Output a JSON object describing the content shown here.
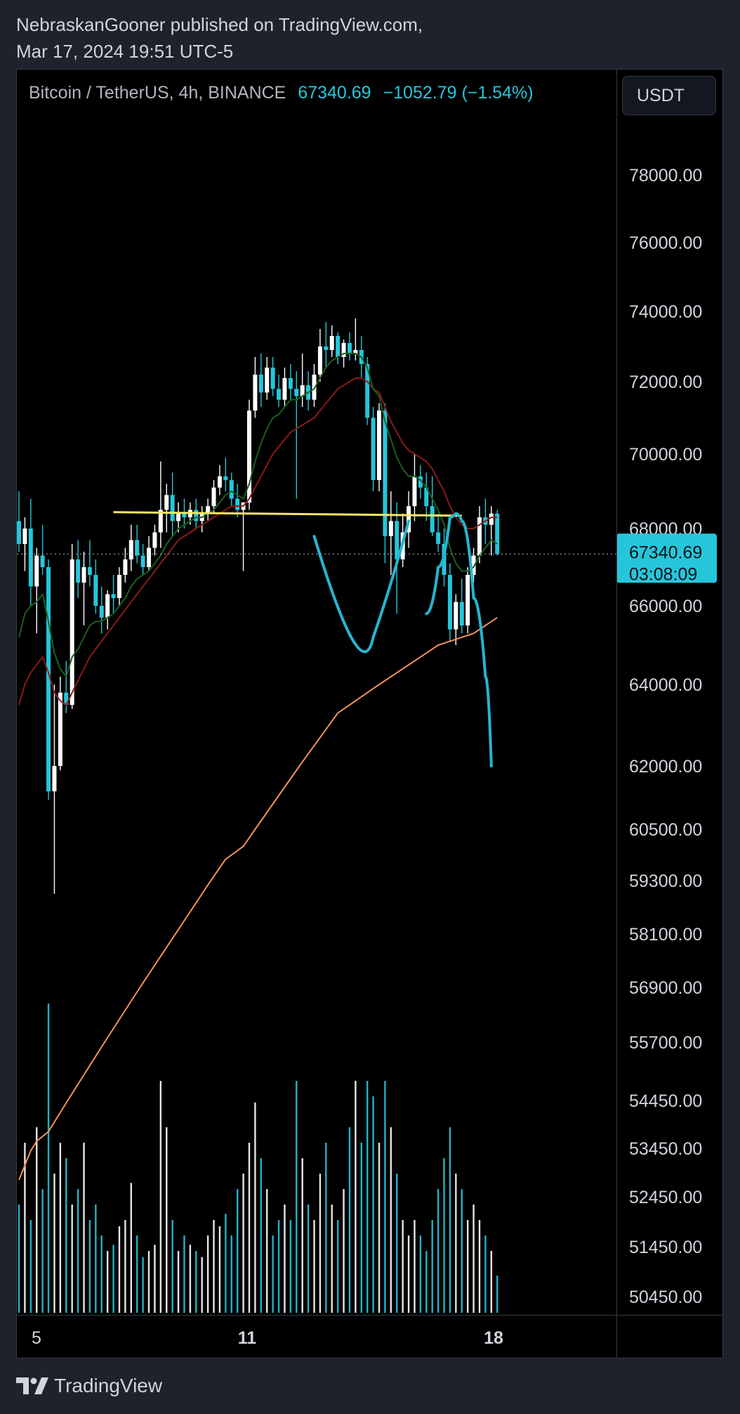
{
  "header": {
    "publisher_line": "NebraskanGooner published on TradingView.com,",
    "date_line": "Mar 17, 2024 19:51 UTC-5"
  },
  "symbol": {
    "name": "Bitcoin / TetherUS, 4h, BINANCE",
    "price": "67340.69",
    "change": "−1052.79 (−1.54%)"
  },
  "currency_button": "USDT",
  "price_badge": {
    "price": "67340.69",
    "countdown": "03:08:09"
  },
  "footer": {
    "brand": "TradingView"
  },
  "colors": {
    "up": "#ffffff",
    "down": "#26c6da",
    "ema_fast": "#1b5e20",
    "ema_mid": "#8b1a1a",
    "ema_slow": "#f4915a",
    "resistance": "#f5e663",
    "projection": "#26b5d0"
  },
  "chart_data": {
    "type": "candlestick",
    "timeframe": "4h",
    "x_tick_labels": [
      "5",
      "11",
      "18"
    ],
    "y_tick_labels": [
      "78000.00",
      "76000.00",
      "74000.00",
      "72000.00",
      "70000.00",
      "68000.00",
      "66000.00",
      "64000.00",
      "62000.00",
      "60500.00",
      "59300.00",
      "58100.00",
      "56900.00",
      "55700.00",
      "54450.00",
      "53450.00",
      "52450.00",
      "51450.00",
      "50450.00"
    ],
    "ylim": [
      50000,
      79000
    ],
    "last_price": 67340.69,
    "candles": [
      [
        68200,
        69000,
        67400,
        67600
      ],
      [
        67600,
        68300,
        66900,
        68000
      ],
      [
        68000,
        68800,
        66000,
        66500
      ],
      [
        66500,
        67500,
        65300,
        67300
      ],
      [
        67300,
        68100,
        66800,
        67000
      ],
      [
        67000,
        67200,
        61200,
        61400
      ],
      [
        61400,
        64000,
        59000,
        62000
      ],
      [
        62000,
        64200,
        61900,
        63800
      ],
      [
        63800,
        64600,
        63300,
        63500
      ],
      [
        63500,
        67600,
        63400,
        67200
      ],
      [
        67200,
        67700,
        66200,
        66600
      ],
      [
        66600,
        67400,
        65500,
        67000
      ],
      [
        67000,
        67700,
        66500,
        66800
      ],
      [
        66800,
        67200,
        65800,
        66000
      ],
      [
        66000,
        66500,
        65300,
        65700
      ],
      [
        65700,
        66400,
        65400,
        66300
      ],
      [
        66300,
        66800,
        65800,
        66200
      ],
      [
        66200,
        67000,
        66000,
        66800
      ],
      [
        66800,
        67500,
        66600,
        67200
      ],
      [
        67200,
        68100,
        66900,
        67700
      ],
      [
        67700,
        68100,
        67100,
        67300
      ],
      [
        67300,
        67600,
        66800,
        67000
      ],
      [
        67000,
        67800,
        66900,
        67500
      ],
      [
        67500,
        68100,
        67300,
        67900
      ],
      [
        67900,
        69800,
        67500,
        68500
      ],
      [
        68500,
        69200,
        67900,
        68900
      ],
      [
        68900,
        69500,
        67800,
        68200
      ],
      [
        68200,
        68700,
        67900,
        68400
      ],
      [
        68400,
        68800,
        68000,
        68300
      ],
      [
        68300,
        68700,
        68100,
        68500
      ],
      [
        68500,
        68800,
        68000,
        68200
      ],
      [
        68200,
        68600,
        67900,
        68400
      ],
      [
        68400,
        68800,
        68200,
        68600
      ],
      [
        68600,
        69300,
        68400,
        69100
      ],
      [
        69100,
        69700,
        68900,
        69400
      ],
      [
        69400,
        69900,
        69000,
        69300
      ],
      [
        69300,
        69500,
        68600,
        68800
      ],
      [
        68800,
        69200,
        68300,
        68500
      ],
      [
        68500,
        68700,
        66900,
        68700
      ],
      [
        68700,
        71500,
        68500,
        71200
      ],
      [
        71200,
        72700,
        71000,
        72200
      ],
      [
        72200,
        72800,
        71300,
        71700
      ],
      [
        71700,
        72700,
        71500,
        72400
      ],
      [
        72400,
        72700,
        71600,
        71800
      ],
      [
        71800,
        72200,
        71300,
        71500
      ],
      [
        71500,
        72400,
        71300,
        72100
      ],
      [
        72100,
        72500,
        71500,
        71800
      ],
      [
        71800,
        72300,
        68800,
        71600
      ],
      [
        71600,
        72800,
        71300,
        71900
      ],
      [
        71900,
        72300,
        71200,
        71500
      ],
      [
        71500,
        72500,
        71300,
        72200
      ],
      [
        72200,
        73500,
        72000,
        73000
      ],
      [
        73000,
        73700,
        72400,
        72900
      ],
      [
        72900,
        73600,
        72700,
        73300
      ],
      [
        73300,
        73400,
        72500,
        72700
      ],
      [
        72700,
        73200,
        72400,
        73100
      ],
      [
        73100,
        73400,
        72600,
        72800
      ],
      [
        72800,
        73800,
        72600,
        72900
      ],
      [
        72900,
        73300,
        72100,
        72500
      ],
      [
        72500,
        72700,
        70800,
        71000
      ],
      [
        71000,
        71300,
        69000,
        69300
      ],
      [
        69300,
        71400,
        69000,
        71200
      ],
      [
        71200,
        71400,
        67100,
        67800
      ],
      [
        67800,
        69000,
        66800,
        68200
      ],
      [
        68200,
        68700,
        65800,
        67200
      ],
      [
        67200,
        68400,
        67000,
        67900
      ],
      [
        67900,
        69000,
        67500,
        68600
      ],
      [
        68600,
        70000,
        68200,
        69400
      ],
      [
        69400,
        69700,
        68800,
        69100
      ],
      [
        69100,
        69500,
        68200,
        68600
      ],
      [
        68600,
        69400,
        67800,
        67900
      ],
      [
        67900,
        68400,
        67400,
        67600
      ],
      [
        67600,
        68000,
        66500,
        66800
      ],
      [
        66800,
        67100,
        65100,
        65400
      ],
      [
        65400,
        66300,
        65000,
        66100
      ],
      [
        66100,
        66700,
        65300,
        65500
      ],
      [
        65500,
        67000,
        65300,
        66800
      ],
      [
        66800,
        67500,
        66600,
        67300
      ],
      [
        67300,
        68600,
        67100,
        68300
      ],
      [
        68300,
        68800,
        67600,
        68100
      ],
      [
        68100,
        68600,
        67300,
        68400
      ],
      [
        68400,
        68500,
        67300,
        67341
      ]
    ],
    "volume": [
      0.35,
      0.55,
      0.3,
      0.6,
      0.4,
      1.0,
      0.45,
      0.55,
      0.5,
      0.35,
      0.4,
      0.55,
      0.3,
      0.35,
      0.25,
      0.2,
      0.22,
      0.28,
      0.3,
      0.42,
      0.25,
      0.18,
      0.2,
      0.22,
      0.75,
      0.6,
      0.3,
      0.2,
      0.25,
      0.22,
      0.2,
      0.18,
      0.25,
      0.3,
      0.28,
      0.32,
      0.25,
      0.4,
      0.45,
      0.55,
      0.68,
      0.5,
      0.4,
      0.25,
      0.3,
      0.35,
      0.3,
      0.75,
      0.5,
      0.35,
      0.3,
      0.45,
      0.55,
      0.35,
      0.3,
      0.4,
      0.6,
      0.75,
      0.55,
      0.75,
      0.7,
      0.55,
      0.75,
      0.6,
      0.45,
      0.3,
      0.25,
      0.3,
      0.25,
      0.2,
      0.3,
      0.4,
      0.5,
      0.6,
      0.45,
      0.4,
      0.3,
      0.35,
      0.3,
      0.25,
      0.2,
      0.12
    ],
    "ema_fast": [
      65200,
      65800,
      66000,
      66100,
      66300,
      65600,
      64800,
      64400,
      64200,
      64700,
      64900,
      65200,
      65500,
      65600,
      65600,
      65700,
      65800,
      66000,
      66200,
      66500,
      66700,
      66800,
      66900,
      67100,
      67300,
      67600,
      67800,
      68000,
      68100,
      68200,
      68300,
      68300,
      68400,
      68500,
      68700,
      68900,
      69000,
      68900,
      68800,
      69200,
      69800,
      70300,
      70700,
      71000,
      71100,
      71300,
      71500,
      71500,
      71600,
      71700,
      71800,
      72100,
      72400,
      72600,
      72700,
      72800,
      72800,
      72800,
      72700,
      72400,
      71800,
      71600,
      70900,
      70400,
      69900,
      69600,
      69400,
      69400,
      69300,
      69100,
      68800,
      68500,
      68100,
      67500,
      67100,
      66900,
      66900,
      67000,
      67300,
      67500,
      67700,
      67600
    ],
    "ema_mid": [
      63500,
      64000,
      64300,
      64500,
      64700,
      64300,
      63800,
      63600,
      63500,
      63800,
      64100,
      64400,
      64700,
      64900,
      65100,
      65300,
      65500,
      65700,
      65900,
      66100,
      66300,
      66500,
      66700,
      66900,
      67100,
      67300,
      67500,
      67700,
      67800,
      67900,
      68000,
      68100,
      68200,
      68300,
      68400,
      68500,
      68600,
      68600,
      68600,
      68800,
      69100,
      69400,
      69700,
      70000,
      70200,
      70400,
      70600,
      70700,
      70800,
      70900,
      71000,
      71200,
      71400,
      71600,
      71800,
      71900,
      72000,
      72100,
      72100,
      72000,
      71800,
      71700,
      71300,
      70900,
      70600,
      70300,
      70100,
      70000,
      69900,
      69800,
      69600,
      69300,
      69000,
      68600,
      68300,
      68100,
      68000,
      68000,
      68100,
      68200,
      68300,
      68300
    ],
    "ema_slow": [
      52800,
      53100,
      53400,
      53600,
      53700,
      53800,
      54000,
      54200,
      54400,
      54600,
      54800,
      55000,
      55200,
      55400,
      55600,
      55800,
      56000,
      56200,
      56400,
      56600,
      56800,
      57000,
      57200,
      57400,
      57600,
      57800,
      58000,
      58200,
      58400,
      58600,
      58800,
      59000,
      59200,
      59400,
      59600,
      59800,
      59900,
      60000,
      60100,
      60300,
      60500,
      60700,
      60900,
      61100,
      61300,
      61500,
      61700,
      61900,
      62100,
      62300,
      62500,
      62700,
      62900,
      63100,
      63300,
      63400,
      63500,
      63600,
      63700,
      63800,
      63900,
      64000,
      64100,
      64200,
      64300,
      64400,
      64500,
      64600,
      64700,
      64800,
      64900,
      65000,
      65050,
      65100,
      65150,
      65200,
      65250,
      65300,
      65400,
      65500,
      65600,
      65700
    ],
    "resistance_level": 68400,
    "projection_path": [
      [
        69,
        65800
      ],
      [
        71,
        67000
      ],
      [
        73,
        68300
      ],
      [
        74,
        68400
      ],
      [
        75,
        68200
      ],
      [
        77,
        66200
      ],
      [
        79,
        64200
      ],
      [
        80,
        62000
      ]
    ]
  }
}
